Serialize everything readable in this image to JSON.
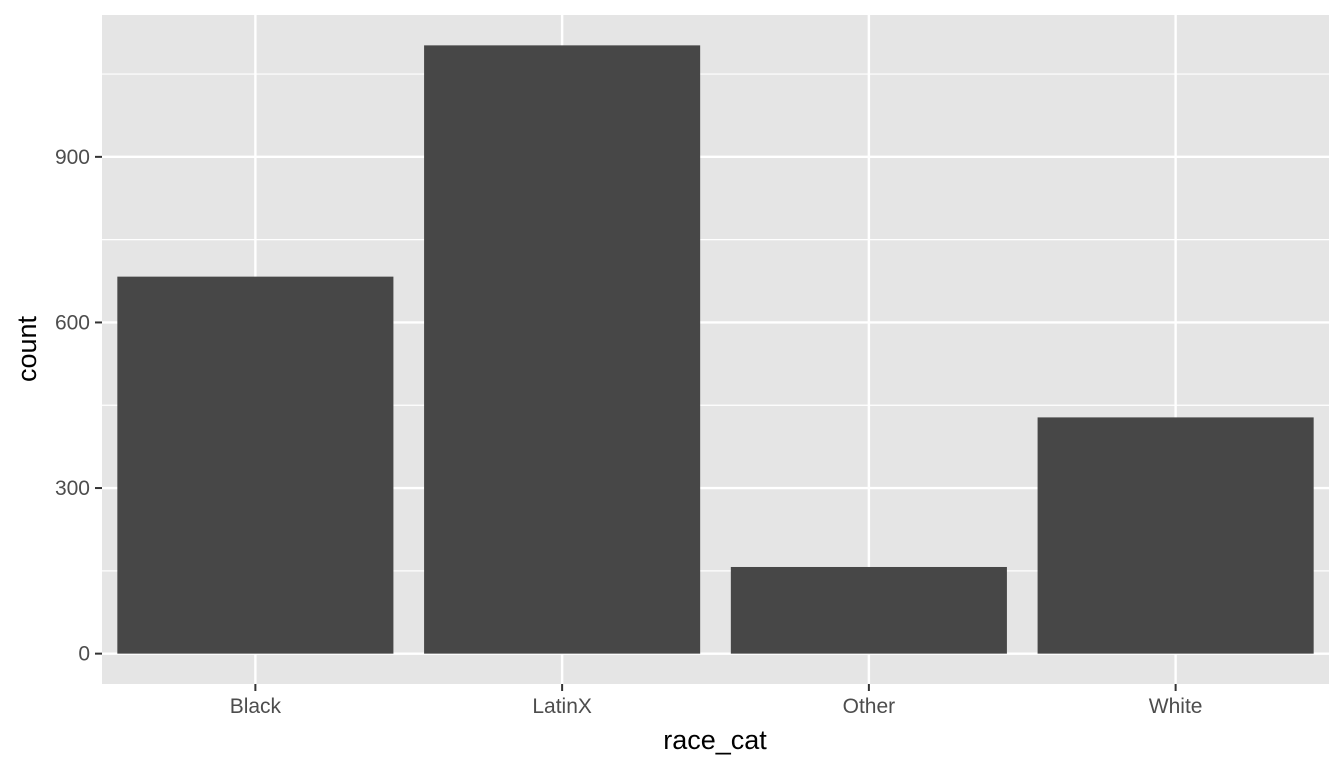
{
  "chart_data": {
    "type": "bar",
    "title": "",
    "xlabel": "race_cat",
    "ylabel": "count",
    "categories": [
      "Black",
      "LatinX",
      "Other",
      "White"
    ],
    "values": [
      683,
      1102,
      157,
      428
    ],
    "ylim": [
      -55,
      1157
    ],
    "yticks": [
      0,
      300,
      600,
      900
    ],
    "yticks_minor": [
      150,
      450,
      750,
      1050
    ],
    "grid": true,
    "legend": "none",
    "colors": {
      "panel": "#E5E5E5",
      "grid": "#FFFFFF",
      "bar": "#474747",
      "tick_text": "#4D4D4D",
      "tick_mark": "#333333"
    }
  }
}
